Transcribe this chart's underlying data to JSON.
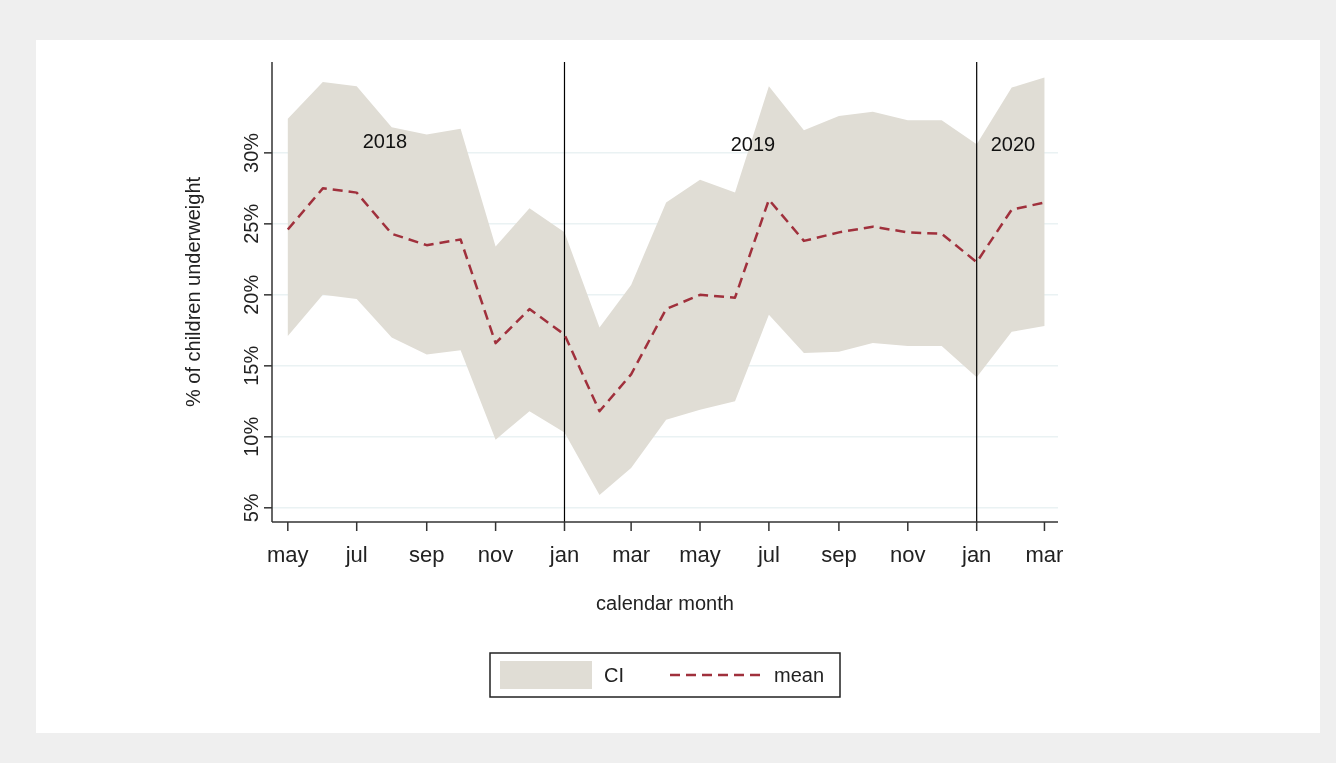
{
  "chart_data": {
    "type": "line",
    "xlabel": "calendar month",
    "ylabel": "% of children underweight",
    "x": [
      "2018-05",
      "2018-06",
      "2018-07",
      "2018-08",
      "2018-09",
      "2018-10",
      "2018-11",
      "2018-12",
      "2019-01",
      "2019-02",
      "2019-03",
      "2019-04",
      "2019-05",
      "2019-06",
      "2019-07",
      "2019-08",
      "2019-09",
      "2019-10",
      "2019-11",
      "2019-12",
      "2020-01",
      "2020-02",
      "2020-03"
    ],
    "series": [
      {
        "name": "mean",
        "color": "#a0303c",
        "line_style": "dashed",
        "values": [
          24.6,
          27.5,
          27.2,
          24.3,
          23.5,
          23.9,
          16.6,
          19.0,
          17.2,
          11.8,
          14.4,
          19.0,
          20.0,
          19.8,
          26.7,
          23.8,
          24.4,
          24.8,
          24.4,
          24.3,
          22.3,
          26.0,
          26.5
        ],
        "lower": [
          17.1,
          20.0,
          19.7,
          17.0,
          15.8,
          16.1,
          9.8,
          11.8,
          10.3,
          5.9,
          7.8,
          11.2,
          11.9,
          12.5,
          18.6,
          15.9,
          16.0,
          16.6,
          16.4,
          16.4,
          14.2,
          17.4,
          17.8
        ],
        "upper": [
          32.4,
          35.0,
          34.7,
          31.8,
          31.3,
          31.7,
          23.4,
          26.1,
          24.4,
          17.7,
          20.7,
          26.5,
          28.1,
          27.2,
          34.7,
          31.6,
          32.6,
          32.9,
          32.3,
          32.3,
          30.6,
          34.6,
          35.3
        ]
      }
    ],
    "xlim": [
      "2018-04-17",
      "2020-03-13"
    ],
    "xticks": [
      {
        "value": "2018-05",
        "label": "may"
      },
      {
        "value": "2018-07",
        "label": "jul"
      },
      {
        "value": "2018-09",
        "label": "sep"
      },
      {
        "value": "2018-11",
        "label": "nov"
      },
      {
        "value": "2019-01",
        "label": "jan"
      },
      {
        "value": "2019-03",
        "label": "mar"
      },
      {
        "value": "2019-05",
        "label": "may"
      },
      {
        "value": "2019-07",
        "label": "jul"
      },
      {
        "value": "2019-09",
        "label": "sep"
      },
      {
        "value": "2019-11",
        "label": "nov"
      },
      {
        "value": "2020-01",
        "label": "jan"
      },
      {
        "value": "2020-03",
        "label": "mar"
      }
    ],
    "ylim": [
      4.0,
      36.4
    ],
    "yticks": [
      {
        "value": 5,
        "label": "5%"
      },
      {
        "value": 10,
        "label": "10%"
      },
      {
        "value": 15,
        "label": "15%"
      },
      {
        "value": 20,
        "label": "20%"
      },
      {
        "value": 25,
        "label": "25%"
      },
      {
        "value": 30,
        "label": "30%"
      }
    ],
    "ref_lines": [
      {
        "axis": "x",
        "value": "2019-01",
        "color": "#000000"
      },
      {
        "axis": "x",
        "value": "2020-01",
        "color": "#000000"
      }
    ],
    "annotations": [
      "2018",
      "2019",
      "2020",
      "CI"
    ],
    "grid": "y",
    "legend": "bottom"
  }
}
